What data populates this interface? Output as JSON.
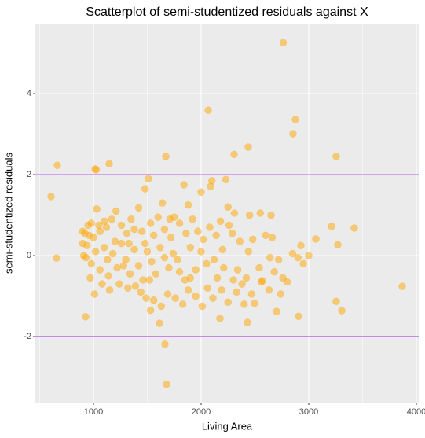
{
  "chart_data": {
    "type": "scatter",
    "title": "Scatterplot of semi-studentized residuals against X",
    "x_label": "Living Area",
    "y_label": "semi-studentized residuals",
    "color": "#FFA500",
    "xlim": [
      460,
      4022
    ],
    "ylim": [
      -3.63,
      5.73
    ],
    "xticks": [
      1000,
      2000,
      3000,
      4000
    ],
    "yticks": [
      -2,
      0,
      2,
      4
    ],
    "grid": true,
    "hlines": [
      2,
      -2
    ],
    "hline_color": "#A020F0",
    "x": [
      606,
      664,
      657,
      1015,
      1025,
      1146,
      2066,
      2763,
      2854,
      2876,
      2307,
      2438,
      3255,
      1672,
      3869,
      3423,
      3212,
      3066,
      3270,
      2927,
      1679,
      1664,
      927,
      3307,
      3255,
      2905,
      2701,
      2496,
      2430,
      2175,
      1613,
      2088,
      2000,
      1840,
      1510,
      1480,
      2230,
      2100,
      1640,
      1420,
      1030,
      1210,
      1880,
      2250,
      2310,
      2550,
      2650,
      2450,
      1600,
      1750,
      1350,
      1170,
      1100,
      980,
      950,
      900,
      920,
      960,
      1000,
      1060,
      1120,
      1260,
      1310,
      1380,
      1450,
      1530,
      1560,
      1660,
      1720,
      1800,
      1860,
      1920,
      1970,
      2020,
      2080,
      2140,
      2180,
      2260,
      2290,
      2360,
      2480,
      2600,
      2660,
      2850,
      2720,
      2540,
      2560,
      2570,
      2420,
      2380,
      2300,
      2210,
      2150,
      2120,
      2050,
      2000,
      1950,
      1900,
      1850,
      1800,
      1780,
      1740,
      1700,
      1660,
      1620,
      1580,
      1540,
      1500,
      1460,
      1420,
      1380,
      1340,
      1300,
      1260,
      1220,
      1180,
      1140,
      1100,
      1060,
      1020,
      980,
      940,
      910,
      900,
      930,
      970,
      1010,
      1080,
      1150,
      1240,
      1320,
      1390,
      1440,
      1490,
      1530,
      1560,
      1630,
      1690,
      1760,
      1830,
      1880,
      1950,
      2010,
      2060,
      2110,
      2190,
      2250,
      2330,
      2400,
      2470,
      2630,
      2740,
      2760,
      2800,
      2900,
      2950,
      2640,
      2680,
      3000,
      2340,
      1480,
      1710,
      1200,
      1050,
      1130,
      1330,
      1280,
      1520,
      1900,
      2200,
      2440
    ],
    "values": [
      1.46,
      2.23,
      -0.06,
      2.14,
      2.12,
      2.27,
      3.59,
      5.26,
      3.01,
      3.36,
      2.5,
      2.68,
      2.45,
      2.45,
      -0.76,
      0.68,
      0.72,
      0.41,
      0.27,
      0.25,
      -3.18,
      -2.19,
      -1.51,
      -1.36,
      -1.13,
      -1.5,
      -1.38,
      -1.18,
      -1.65,
      -1.55,
      -1.67,
      1.71,
      1.57,
      1.75,
      1.9,
      1.65,
      1.88,
      1.85,
      1.3,
      1.18,
      1.15,
      1.1,
      1.25,
      1.2,
      1.05,
      1.05,
      1.0,
      1.0,
      0.95,
      0.95,
      0.9,
      0.9,
      0.85,
      0.8,
      0.75,
      0.6,
      0.55,
      0.5,
      0.45,
      0.6,
      0.7,
      0.75,
      0.55,
      0.65,
      0.6,
      0.8,
      0.5,
      0.65,
      0.45,
      0.8,
      0.55,
      0.9,
      0.6,
      0.4,
      0.7,
      0.5,
      0.85,
      0.75,
      0.55,
      0.35,
      0.4,
      0.5,
      0.45,
      0.05,
      -0.1,
      -0.3,
      -0.65,
      -0.62,
      -0.55,
      -0.7,
      -0.6,
      -0.3,
      -0.55,
      -0.1,
      -0.2,
      0.1,
      -0.35,
      -0.55,
      -0.6,
      -0.4,
      -0.1,
      0.05,
      -0.3,
      -0.05,
      0.2,
      -0.45,
      -0.15,
      0.1,
      -0.6,
      -0.25,
      0.15,
      -0.45,
      -0.1,
      0.3,
      -0.3,
      0.05,
      -0.5,
      0.2,
      -0.35,
      0.1,
      -0.2,
      0.25,
      0.0,
      0.3,
      -0.05,
      -0.55,
      -0.95,
      -0.7,
      -0.85,
      -0.7,
      -0.8,
      -0.75,
      -0.9,
      -1.05,
      -1.35,
      -1.1,
      -1.25,
      -0.95,
      -1.05,
      -1.2,
      -0.85,
      -1.0,
      -1.25,
      -0.8,
      -1.05,
      -0.85,
      -1.15,
      -0.9,
      -1.2,
      -0.95,
      -0.85,
      -0.95,
      -0.55,
      -0.65,
      -0.05,
      -0.2,
      -0.05,
      -0.4,
      0.0,
      -0.35,
      0.3,
      0.9,
      0.35,
      0.75,
      -0.1,
      0.3,
      -0.25,
      -0.6,
      0.2,
      0.15,
      0.1
    ]
  }
}
